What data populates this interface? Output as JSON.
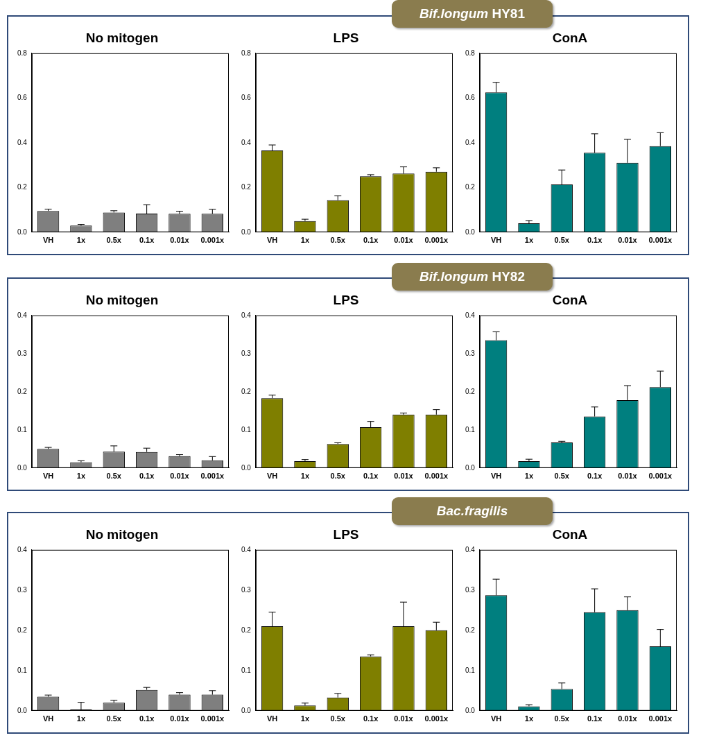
{
  "panel_labels": [
    "Bif.longum HY81",
    "Bif.longum HY82",
    "Bac.fragilis"
  ],
  "chart_data": [
    {
      "type": "bar",
      "title": "No mitogen",
      "categories": [
        "VH",
        "1x",
        "0.5x",
        "0.1x",
        "0.01x",
        "0.001x"
      ],
      "values": [
        0.095,
        0.03,
        0.088,
        0.083,
        0.082,
        0.082
      ],
      "errors": [
        0.008,
        0.005,
        0.008,
        0.04,
        0.012,
        0.02
      ],
      "color": "#7f7f7f",
      "ylim": [
        0,
        0.8
      ],
      "yticks": [
        {
          "value": 0,
          "label": "0.0"
        },
        0.2,
        0.4,
        0.6,
        0.8
      ],
      "grid": false
    },
    {
      "type": "bar",
      "title": "LPS",
      "categories": [
        "VH",
        "1x",
        "0.5x",
        "0.1x",
        "0.01x",
        "0.001x"
      ],
      "values": [
        0.365,
        0.05,
        0.143,
        0.25,
        0.262,
        0.27
      ],
      "errors": [
        0.025,
        0.008,
        0.02,
        0.007,
        0.03,
        0.018
      ],
      "color": "#7f7f00",
      "ylim": [
        0,
        0.8
      ],
      "yticks": [
        {
          "value": 0,
          "label": "0.0"
        },
        0.2,
        0.4,
        0.6,
        0.8
      ],
      "grid": false
    },
    {
      "type": "bar",
      "title": "ConA",
      "categories": [
        "VH",
        "1x",
        "0.5x",
        "0.1x",
        "0.01x",
        "0.001x"
      ],
      "values": [
        0.625,
        0.04,
        0.213,
        0.355,
        0.31,
        0.385
      ],
      "errors": [
        0.045,
        0.012,
        0.065,
        0.085,
        0.105,
        0.06
      ],
      "color": "#007f7f",
      "ylim": [
        0,
        0.8
      ],
      "yticks": [
        {
          "value": 0,
          "label": "0.0"
        },
        0.2,
        0.4,
        0.6,
        0.8
      ],
      "grid": false
    },
    {
      "type": "bar",
      "title": "No mitogen",
      "categories": [
        "VH",
        "1x",
        "0.5x",
        "0.1x",
        "0.01x",
        "0.001x"
      ],
      "values": [
        0.05,
        0.015,
        0.043,
        0.042,
        0.031,
        0.02
      ],
      "errors": [
        0.004,
        0.004,
        0.015,
        0.01,
        0.004,
        0.01
      ],
      "color": "#7f7f7f",
      "ylim": [
        0,
        0.4
      ],
      "yticks": [
        {
          "value": 0,
          "label": "0.0"
        },
        0.1,
        0.2,
        0.3,
        0.4
      ],
      "grid": false
    },
    {
      "type": "bar",
      "title": "LPS",
      "categories": [
        "VH",
        "1x",
        "0.5x",
        "0.1x",
        "0.01x",
        "0.001x"
      ],
      "values": [
        0.183,
        0.018,
        0.063,
        0.107,
        0.14,
        0.14
      ],
      "errors": [
        0.008,
        0.004,
        0.003,
        0.015,
        0.004,
        0.013
      ],
      "color": "#7f7f00",
      "ylim": [
        0,
        0.4
      ],
      "yticks": [
        {
          "value": 0,
          "label": "0.0"
        },
        0.1,
        0.2,
        0.3,
        0.4
      ],
      "grid": false
    },
    {
      "type": "bar",
      "title": "ConA",
      "categories": [
        "VH",
        "1x",
        "0.5x",
        "0.1x",
        "0.01x",
        "0.001x"
      ],
      "values": [
        0.335,
        0.018,
        0.067,
        0.135,
        0.178,
        0.212
      ],
      "errors": [
        0.022,
        0.005,
        0.003,
        0.025,
        0.038,
        0.042
      ],
      "color": "#007f7f",
      "ylim": [
        0,
        0.4
      ],
      "yticks": [
        {
          "value": 0,
          "label": "0.0"
        },
        0.1,
        0.2,
        0.3,
        0.4
      ],
      "grid": false
    },
    {
      "type": "bar",
      "title": "No mitogen",
      "categories": [
        "VH",
        "1x",
        "0.5x",
        "0.1x",
        "0.01x",
        "0.001x"
      ],
      "values": [
        0.035,
        0.003,
        0.02,
        0.052,
        0.04,
        0.04
      ],
      "errors": [
        0.004,
        0.018,
        0.006,
        0.006,
        0.005,
        0.01
      ],
      "color": "#7f7f7f",
      "ylim": [
        0,
        0.4
      ],
      "yticks": [
        {
          "value": 0,
          "label": "0.0"
        },
        0.1,
        0.2,
        0.3,
        0.4
      ],
      "grid": false
    },
    {
      "type": "bar",
      "title": "LPS",
      "categories": [
        "VH",
        "1x",
        "0.5x",
        "0.1x",
        "0.01x",
        "0.001x"
      ],
      "values": [
        0.21,
        0.013,
        0.033,
        0.135,
        0.21,
        0.2
      ],
      "errors": [
        0.035,
        0.006,
        0.01,
        0.004,
        0.06,
        0.02
      ],
      "color": "#7f7f00",
      "ylim": [
        0,
        0.4
      ],
      "yticks": [
        {
          "value": 0,
          "label": "0.0"
        },
        0.1,
        0.2,
        0.3,
        0.4
      ],
      "grid": false
    },
    {
      "type": "bar",
      "title": "ConA",
      "categories": [
        "VH",
        "1x",
        "0.5x",
        "0.1x",
        "0.01x",
        "0.001x"
      ],
      "values": [
        0.287,
        0.011,
        0.054,
        0.245,
        0.25,
        0.16
      ],
      "errors": [
        0.04,
        0.004,
        0.015,
        0.058,
        0.033,
        0.042
      ],
      "color": "#007f7f",
      "ylim": [
        0,
        0.4
      ],
      "yticks": [
        {
          "value": 0,
          "label": "0.0"
        },
        0.1,
        0.2,
        0.3,
        0.4
      ],
      "grid": false
    }
  ]
}
